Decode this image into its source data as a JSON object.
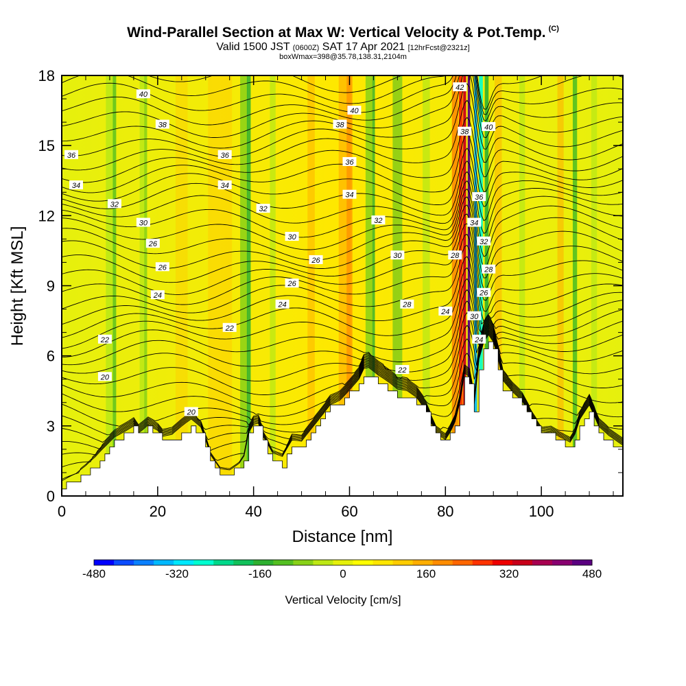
{
  "titles": {
    "main": "Wind-Parallel Section at Max W: Vertical Velocity & Pot.Temp.",
    "main_note": "(C)",
    "valid_prefix": "Valid 1500 JST",
    "valid_utc": "(0600Z)",
    "valid_date": "SAT 17 Apr 2021",
    "forecast": "[12hrFcst@2321z]",
    "box": "boxWmax=398@35.78,138.31,2104m"
  },
  "chart_data": {
    "type": "heatmap",
    "xlabel": "Distance [nm]",
    "ylabel": "Height [Kft MSL]",
    "xlim": [
      0,
      117
    ],
    "ylim": [
      0,
      18
    ],
    "xticks": [
      0,
      20,
      40,
      60,
      80,
      100
    ],
    "yticks": [
      0,
      3,
      6,
      9,
      12,
      15,
      18
    ],
    "terrain": {
      "x": [
        0,
        3,
        5,
        7,
        9,
        11,
        13,
        15,
        16,
        18,
        20,
        21,
        23,
        25,
        27,
        29,
        30,
        31,
        33,
        35,
        37,
        38,
        39,
        40,
        41,
        42,
        44,
        46,
        48,
        50,
        52,
        54,
        56,
        58,
        60,
        62,
        63,
        64,
        66,
        68,
        70,
        72,
        74,
        76,
        78,
        80,
        81,
        82,
        83,
        84,
        85,
        86,
        87,
        88,
        89,
        90,
        91,
        92,
        94,
        96,
        98,
        100,
        102,
        104,
        106,
        107,
        108,
        110,
        112,
        114,
        117
      ],
      "h": [
        0.4,
        0.6,
        0.9,
        1.3,
        1.8,
        2.3,
        2.6,
        2.9,
        2.6,
        2.9,
        2.6,
        2.3,
        2.3,
        2.6,
        2.9,
        2.6,
        2.1,
        1.5,
        1.0,
        1.0,
        1.3,
        1.6,
        2.6,
        2.9,
        2.9,
        2.3,
        1.5,
        1.3,
        2.0,
        2.0,
        2.6,
        3.2,
        3.8,
        4.0,
        4.4,
        4.8,
        5.2,
        5.2,
        4.8,
        4.5,
        4.2,
        4.2,
        4.0,
        3.5,
        2.6,
        2.3,
        2.6,
        3.0,
        3.8,
        5.0,
        4.8,
        3.6,
        5.5,
        6.2,
        6.5,
        6.2,
        5.5,
        4.6,
        4.2,
        3.9,
        3.2,
        2.6,
        2.6,
        2.3,
        2.0,
        2.3,
        2.9,
        3.5,
        2.6,
        2.3,
        2.0
      ]
    },
    "theta_labels": [
      {
        "x": 2,
        "y": 14.6,
        "v": "36"
      },
      {
        "x": 3,
        "y": 13.3,
        "v": "34"
      },
      {
        "x": 11,
        "y": 12.5,
        "v": "32"
      },
      {
        "x": 17,
        "y": 17.2,
        "v": "40"
      },
      {
        "x": 21,
        "y": 15.9,
        "v": "38"
      },
      {
        "x": 17,
        "y": 11.7,
        "v": "30"
      },
      {
        "x": 19,
        "y": 10.8,
        "v": "26"
      },
      {
        "x": 21,
        "y": 9.8,
        "v": "26"
      },
      {
        "x": 20,
        "y": 8.6,
        "v": "24"
      },
      {
        "x": 9,
        "y": 6.7,
        "v": "22"
      },
      {
        "x": 9,
        "y": 5.1,
        "v": "20"
      },
      {
        "x": 27,
        "y": 3.6,
        "v": "20"
      },
      {
        "x": 35,
        "y": 7.2,
        "v": "22"
      },
      {
        "x": 34,
        "y": 14.6,
        "v": "36"
      },
      {
        "x": 34,
        "y": 13.3,
        "v": "34"
      },
      {
        "x": 42,
        "y": 12.3,
        "v": "32"
      },
      {
        "x": 48,
        "y": 11.1,
        "v": "30"
      },
      {
        "x": 53,
        "y": 10.1,
        "v": "26"
      },
      {
        "x": 48,
        "y": 9.1,
        "v": "26"
      },
      {
        "x": 46,
        "y": 8.2,
        "v": "24"
      },
      {
        "x": 58,
        "y": 15.9,
        "v": "38"
      },
      {
        "x": 61,
        "y": 16.5,
        "v": "40"
      },
      {
        "x": 60,
        "y": 14.3,
        "v": "36"
      },
      {
        "x": 60,
        "y": 12.9,
        "v": "34"
      },
      {
        "x": 66,
        "y": 11.8,
        "v": "32"
      },
      {
        "x": 70,
        "y": 10.3,
        "v": "30"
      },
      {
        "x": 72,
        "y": 8.2,
        "v": "28"
      },
      {
        "x": 71,
        "y": 5.4,
        "v": "22"
      },
      {
        "x": 80,
        "y": 7.9,
        "v": "24"
      },
      {
        "x": 82,
        "y": 10.3,
        "v": "28"
      },
      {
        "x": 83,
        "y": 17.5,
        "v": "42"
      },
      {
        "x": 84,
        "y": 15.6,
        "v": "38"
      },
      {
        "x": 89,
        "y": 15.8,
        "v": "40"
      },
      {
        "x": 87,
        "y": 12.8,
        "v": "36"
      },
      {
        "x": 86,
        "y": 11.7,
        "v": "34"
      },
      {
        "x": 88,
        "y": 10.9,
        "v": "32"
      },
      {
        "x": 89,
        "y": 9.7,
        "v": "28"
      },
      {
        "x": 88,
        "y": 8.7,
        "v": "26"
      },
      {
        "x": 86,
        "y": 7.7,
        "v": "30"
      },
      {
        "x": 87,
        "y": 6.7,
        "v": "24"
      }
    ],
    "colorbar": {
      "title": "Vertical Velocity [cm/s]",
      "min": -480,
      "max": 480,
      "tick_labels": [
        "-480",
        "-320",
        "-160",
        "0",
        "160",
        "320",
        "480"
      ],
      "colors": [
        "#0000ff",
        "#0b4cff",
        "#0a80ff",
        "#00b8ff",
        "#00e8ff",
        "#00ffd0",
        "#00d88a",
        "#11c05a",
        "#2eb030",
        "#53bf21",
        "#88d118",
        "#bde815",
        "#e5f00b",
        "#ffff00",
        "#ffe600",
        "#ffcc00",
        "#ffae00",
        "#ff8c00",
        "#ff6600",
        "#ff3300",
        "#ee0000",
        "#c8001a",
        "#a80050",
        "#880070",
        "#5a0080"
      ]
    }
  }
}
